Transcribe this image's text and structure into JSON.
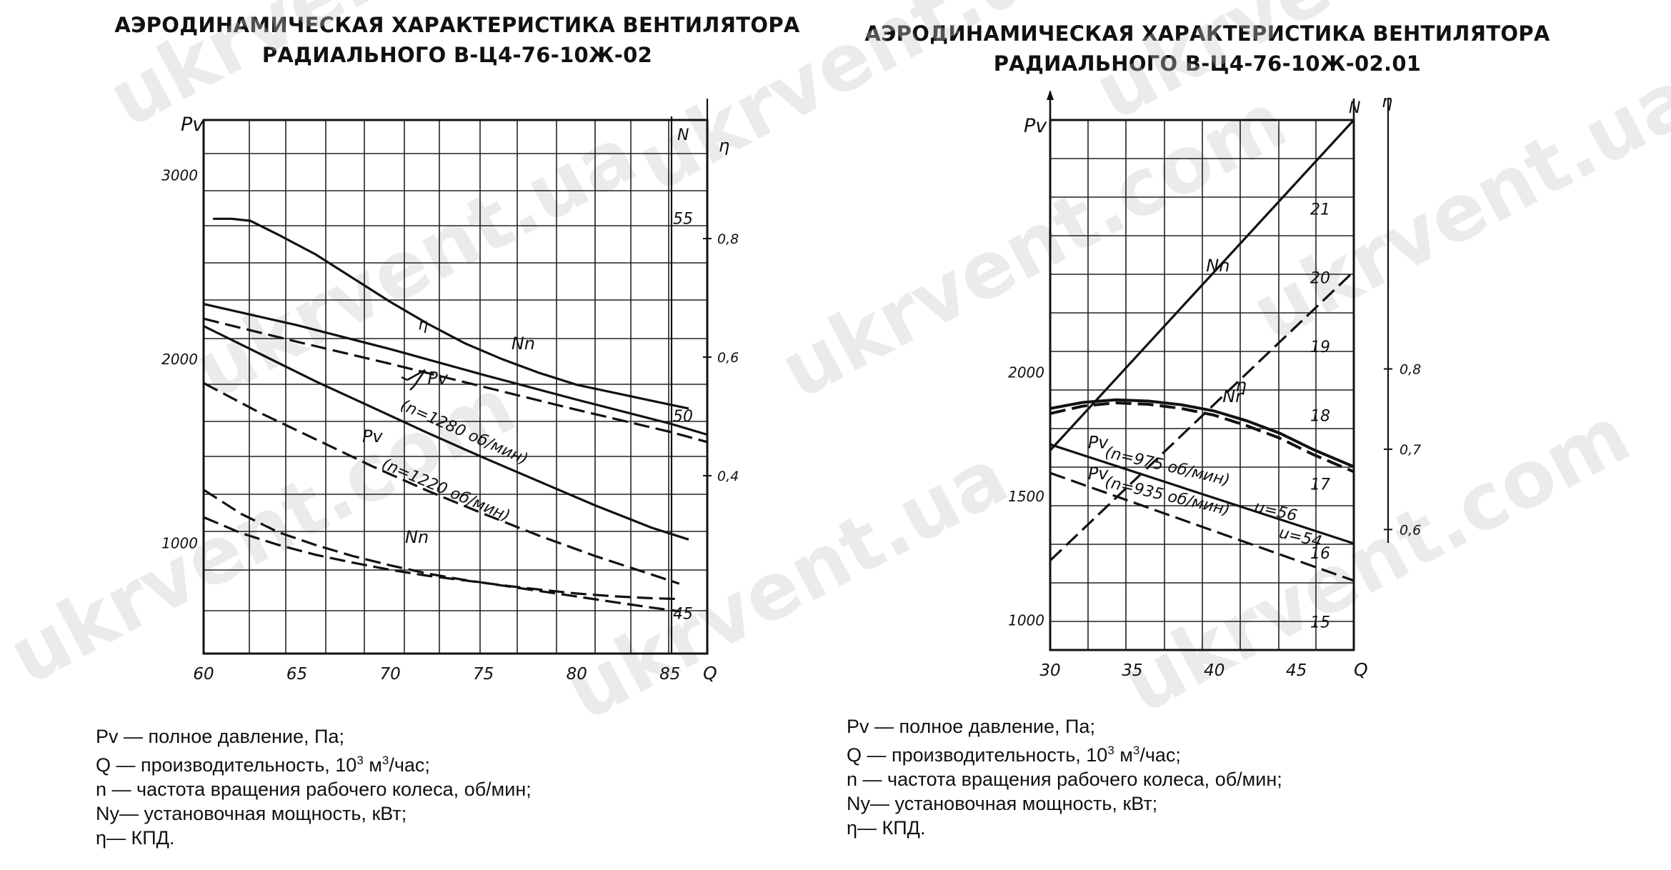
{
  "titles": {
    "left_line1": "АЭРОДИНАМИЧЕСКАЯ ХАРАКТЕРИСТИКА ВЕНТИЛЯТОРА",
    "left_line2": "РАДИАЛЬНОГО В-Ц4-76-10Ж-02",
    "right_line1": "АЭРОДИНАМИЧЕСКАЯ ХАРАКТЕРИСТИКА ВЕНТИЛЯТОРА",
    "right_line2": "РАДИАЛЬНОГО В-Ц4-76-10Ж-02.01"
  },
  "legend": {
    "pv": "Pv — полное давление, Па;",
    "q_prefix": "Q — производительность, 10",
    "q_sup1": "3",
    "q_mid": " м",
    "q_sup2": "3",
    "q_suffix": "/час;",
    "n": "n — частота вращения рабочего колеса, об/мин;",
    "ny": "Ny— установочная мощность, кВт;",
    "eta": "η— КПД."
  },
  "watermark": "ukrvent.com ukrvent.ua",
  "chart_data": [
    {
      "type": "line",
      "x_label": "Q",
      "y_label": "Pv",
      "y2_label": "N",
      "y3_label": "η",
      "xlim": [
        60,
        87
      ],
      "ylim": [
        400,
        3300
      ],
      "y2lim": [
        44,
        57.5
      ],
      "y3lim": [
        0.1,
        1.0
      ],
      "x_ticks": [
        60,
        65,
        70,
        75,
        80,
        85
      ],
      "y_ticks": [
        1000,
        2000,
        3000
      ],
      "y2_ticks": [
        45,
        50,
        55
      ],
      "y3_ticks": [
        0.4,
        0.6,
        0.8
      ],
      "series": [
        {
          "name": "Nn",
          "axis": "N",
          "style": "solid",
          "label_at": [
            76.5,
            51.7
          ],
          "x": [
            60.5,
            61.5,
            62.5,
            64,
            66,
            68,
            70,
            72,
            74,
            76,
            78,
            80,
            82,
            84,
            86
          ],
          "y": [
            55.0,
            55.0,
            54.95,
            54.6,
            54.1,
            53.5,
            52.9,
            52.35,
            51.85,
            51.45,
            51.1,
            50.8,
            50.6,
            50.4,
            50.2
          ]
        },
        {
          "name": "",
          "axis": "Pv",
          "style": "solid",
          "x": [
            60,
            65,
            70,
            75,
            80,
            85,
            87
          ],
          "y": [
            2300,
            2185,
            2055,
            1915,
            1780,
            1650,
            1590
          ]
        },
        {
          "name": "",
          "axis": "Pv",
          "style": "dashed",
          "x": [
            60,
            65,
            70,
            75,
            80,
            85,
            87
          ],
          "y": [
            2220,
            2095,
            1975,
            1850,
            1725,
            1605,
            1550
          ]
        },
        {
          "name": "Pv",
          "axis": "Pv",
          "style": "solid",
          "label_at": [
            72,
            1865
          ],
          "x": [
            60,
            63,
            66,
            69,
            72,
            75,
            78,
            81,
            84,
            86
          ],
          "y": [
            2180,
            2030,
            1880,
            1740,
            1600,
            1465,
            1335,
            1205,
            1085,
            1020
          ]
        },
        {
          "name": "Pv",
          "axis": "Pv",
          "style": "dashed",
          "label_at": [
            68.5,
            1550
          ],
          "x": [
            60,
            63,
            66,
            69,
            72,
            75,
            78,
            81,
            84,
            85.5
          ],
          "y": [
            1870,
            1710,
            1565,
            1420,
            1285,
            1160,
            1040,
            930,
            830,
            780
          ]
        },
        {
          "name": "Nn",
          "axis": "N",
          "style": "dashed",
          "label_at": [
            70.8,
            46.8
          ],
          "x": [
            60,
            62,
            64,
            66,
            68,
            70,
            72,
            74,
            76,
            78,
            80,
            82,
            84,
            85.5
          ],
          "y": [
            47.45,
            47.05,
            46.75,
            46.5,
            46.3,
            46.12,
            45.97,
            45.85,
            45.73,
            45.62,
            45.52,
            45.45,
            45.4,
            45.38
          ]
        },
        {
          "name": "",
          "axis": "Pv",
          "style": "dashed",
          "x": [
            60,
            62,
            64,
            66,
            68,
            70,
            72,
            74,
            76,
            78,
            80,
            82,
            84,
            85.5
          ],
          "y": [
            1290,
            1160,
            1060,
            990,
            930,
            880,
            835,
            800,
            770,
            740,
            710,
            680,
            650,
            630
          ]
        }
      ],
      "annotations": [
        {
          "text": "(n=1280 об/мин)",
          "x": 70.5,
          "y": 1730,
          "angle": 24
        },
        {
          "text": "(n=1220 об/мин)",
          "x": 69.5,
          "y": 1410,
          "angle": 23
        },
        {
          "text": "η",
          "x": 71.5,
          "y": 2160,
          "angle": 0
        }
      ]
    },
    {
      "type": "line",
      "x_label": "Q",
      "y_label": "Pv",
      "y2_label": "N",
      "y3_label": "η",
      "xlim": [
        30,
        48.5
      ],
      "ylim": [
        880,
        3020
      ],
      "y2lim": [
        14.6,
        22.3
      ],
      "y3lim": [
        0.45,
        1.11
      ],
      "x_ticks": [
        30,
        35,
        40,
        45
      ],
      "y_ticks": [
        1000,
        1500,
        2000
      ],
      "y2_ticks": [
        15,
        16,
        17,
        18,
        19,
        20,
        21
      ],
      "y3_ticks": [
        0.6,
        0.7,
        0.8
      ],
      "series": [
        {
          "name": "Nn",
          "axis": "N",
          "style": "solid",
          "label_at": [
            39.5,
            20.1
          ],
          "x": [
            30,
            48.5
          ],
          "y": [
            17.5,
            22.3
          ]
        },
        {
          "name": "Nr",
          "axis": "N",
          "style": "dashed",
          "label_at": [
            40.5,
            18.2
          ],
          "x": [
            30,
            48.5
          ],
          "y": [
            15.9,
            20.1
          ]
        },
        {
          "name": "η",
          "axis": "Pv",
          "style": "solid",
          "label_at": [
            41.3,
            1925
          ],
          "x": [
            30,
            32,
            34,
            36,
            38,
            40,
            42,
            44,
            46,
            48.5
          ],
          "y": [
            1855,
            1880,
            1890,
            1885,
            1870,
            1845,
            1805,
            1755,
            1690,
            1620
          ]
        },
        {
          "name": "",
          "axis": "Pv",
          "style": "dashed",
          "x": [
            30,
            32,
            34,
            36,
            38,
            40,
            42,
            44,
            46,
            48.5
          ],
          "y": [
            1835,
            1865,
            1878,
            1872,
            1855,
            1828,
            1785,
            1735,
            1670,
            1600
          ]
        },
        {
          "name": "Pv",
          "axis": "Pv",
          "style": "solid",
          "label_at": [
            32.3,
            1695
          ],
          "x": [
            30,
            48.5
          ],
          "y": [
            1710,
            1310
          ]
        },
        {
          "name": "Pv",
          "axis": "Pv",
          "style": "dashed",
          "label_at": [
            32.3,
            1570
          ],
          "x": [
            30,
            48.5
          ],
          "y": [
            1595,
            1160
          ]
        }
      ],
      "annotations": [
        {
          "text": "(n=975 об/мин)",
          "x": 33.3,
          "y": 1660,
          "angle": 13
        },
        {
          "text": "u=56",
          "x": 42.4,
          "y": 1440,
          "angle": 13
        },
        {
          "text": "(n=935 об/мин)",
          "x": 33.3,
          "y": 1540,
          "angle": 13
        },
        {
          "text": "u=54",
          "x": 43.9,
          "y": 1335,
          "angle": 13
        }
      ]
    }
  ]
}
